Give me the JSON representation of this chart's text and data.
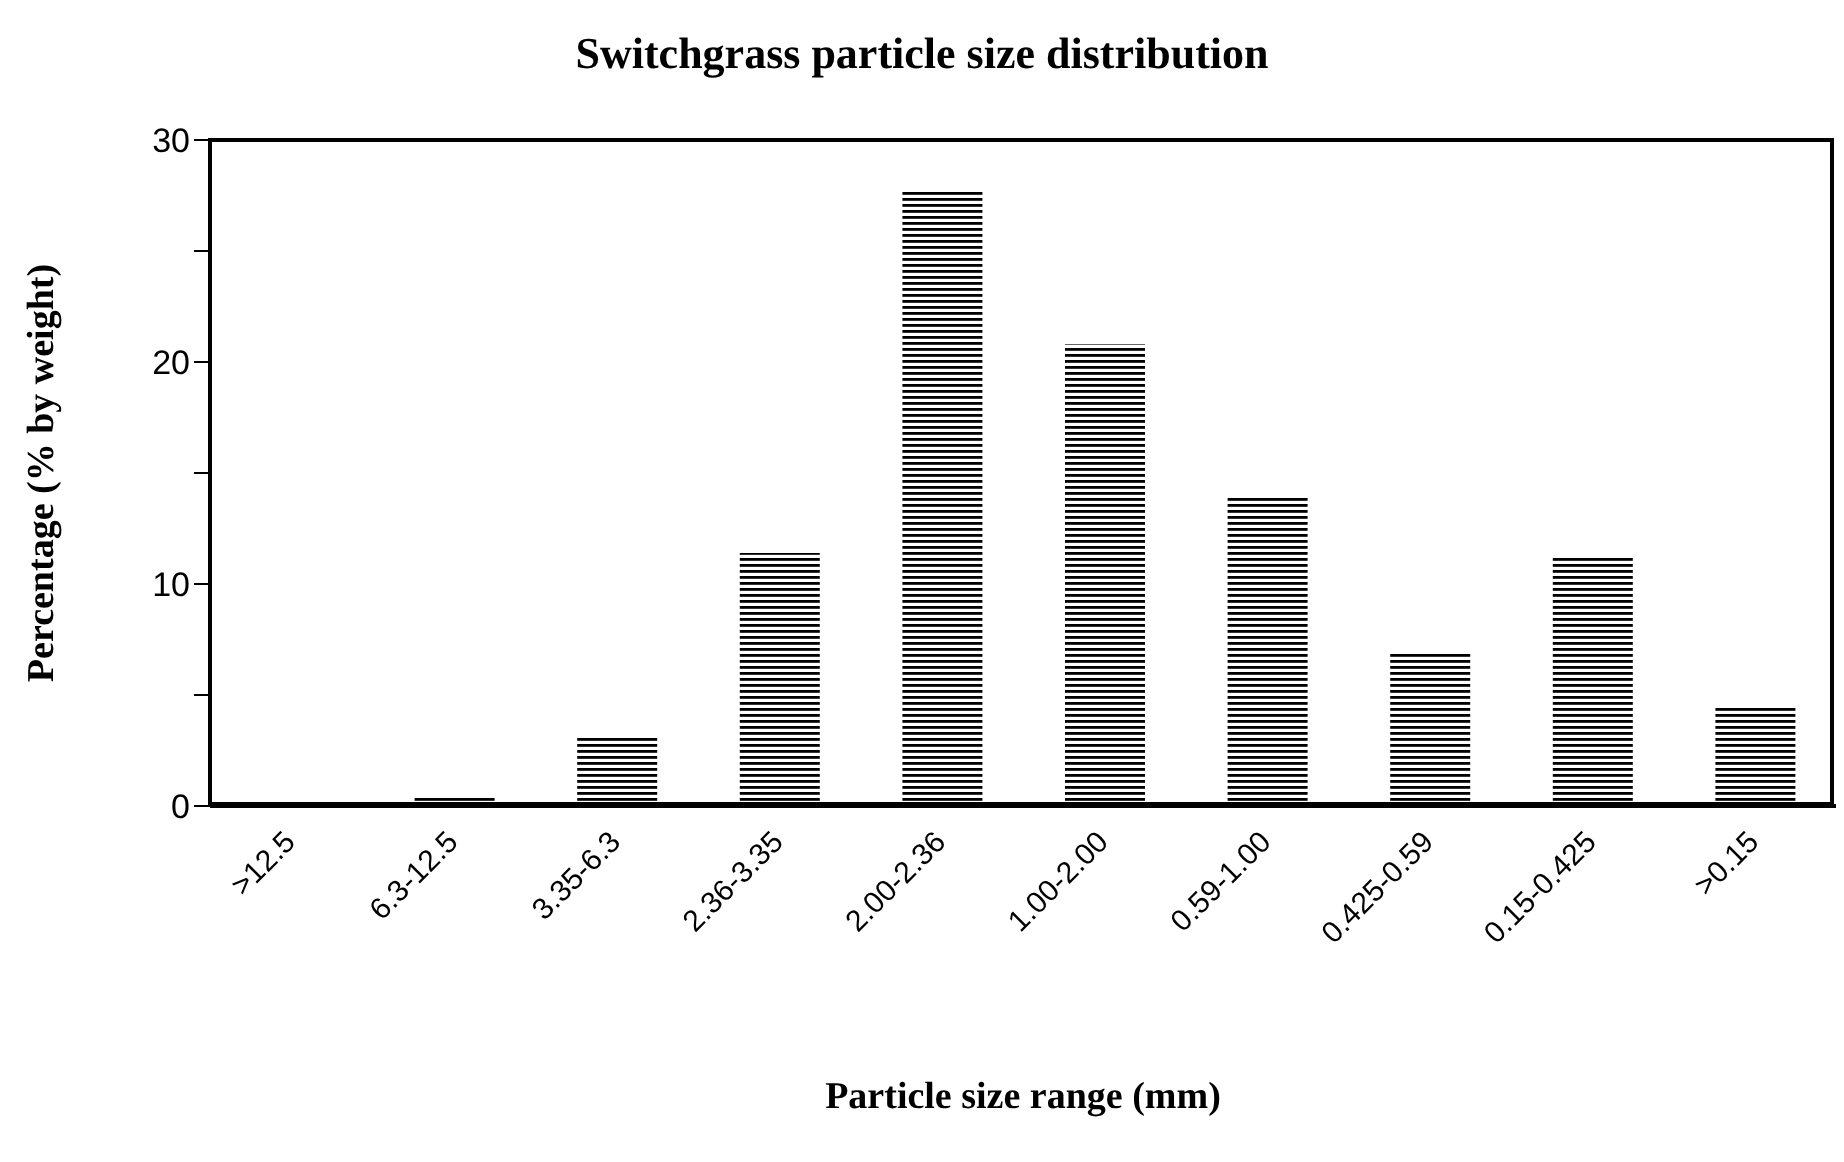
{
  "chart_data": {
    "type": "bar",
    "title": "Switchgrass particle size distribution",
    "xlabel": "Particle size range (mm)",
    "ylabel": "Percentage (% by weight)",
    "categories": [
      ">12.5",
      "6.3-12.5",
      "3.35-6.3",
      "2.36-3.35",
      "2.00-2.36",
      "1.00-2.00",
      "0.59-1.00",
      "0.425-0.59",
      "0.15-0.425",
      ">0.15"
    ],
    "values": [
      0,
      0.5,
      3.1,
      11.4,
      27.7,
      20.8,
      13.9,
      6.9,
      11.3,
      4.5
    ],
    "color": "#000000",
    "ylim": [
      0,
      30
    ],
    "yticks": [
      0,
      {
        "value": 5,
        "label": null
      },
      10,
      {
        "value": 15,
        "label": null
      },
      20,
      {
        "value": 25,
        "label": null
      },
      30
    ],
    "grid": false,
    "legend": false
  }
}
